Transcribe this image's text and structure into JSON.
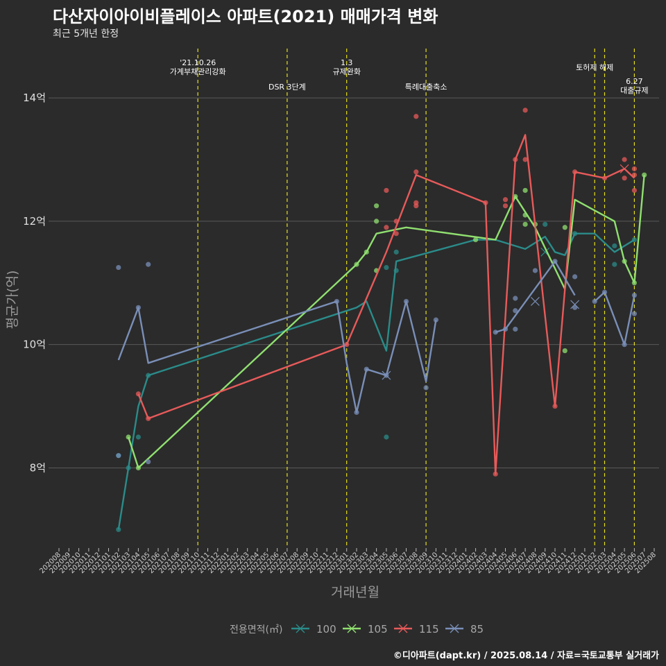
{
  "header": {
    "title": "다산자이아이비플레이스 아파트(2021) 매매가격 변화",
    "subtitle": "최근 5개년 한정"
  },
  "caption": "©디아파트(dapt.kr) / 2025.08.14 / 자료=국토교통부 실거래가",
  "chart_data": {
    "type": "line",
    "xlabel": "거래년월",
    "ylabel": "평균가(억)",
    "ylim": [
      6.7,
      14.8
    ],
    "yticks": [
      {
        "value": 8,
        "label": "8억"
      },
      {
        "value": 10,
        "label": "10억"
      },
      {
        "value": 12,
        "label": "12억"
      },
      {
        "value": 14,
        "label": "14억"
      }
    ],
    "x_categories": [
      "202008",
      "202009",
      "202010",
      "202011",
      "202012",
      "202101",
      "202102",
      "202103",
      "202104",
      "202105",
      "202106",
      "202107",
      "202108",
      "202109",
      "202110",
      "202111",
      "202112",
      "202201",
      "202202",
      "202203",
      "202204",
      "202205",
      "202206",
      "202207",
      "202208",
      "202209",
      "202210",
      "202211",
      "202212",
      "202301",
      "202302",
      "202303",
      "202304",
      "202305",
      "202306",
      "202307",
      "202308",
      "202309",
      "202310",
      "202311",
      "202312",
      "202401",
      "202402",
      "202403",
      "202404",
      "202405",
      "202406",
      "202407",
      "202408",
      "202409",
      "202410",
      "202411",
      "202412",
      "202501",
      "202502",
      "202503",
      "202504",
      "202505",
      "202506",
      "202507",
      "202508"
    ],
    "events": [
      {
        "x": "202110",
        "lines": [
          "'21.10.26",
          "가계부채관리강화"
        ],
        "row": 0
      },
      {
        "x": "202207",
        "lines": [
          "DSR 3단계"
        ],
        "row": 2
      },
      {
        "x": "202301",
        "lines": [
          "1.3",
          "규제완화"
        ],
        "row": 0
      },
      {
        "x": "202309",
        "lines": [
          "특례대출축소"
        ],
        "row": 2
      },
      {
        "x": "202502",
        "lines": [
          "토허제 해제"
        ],
        "row": 1
      },
      {
        "x": "202503",
        "lines": [],
        "row": 1
      },
      {
        "x": "202506",
        "lines": [
          "6.27",
          "대출규제"
        ],
        "row": 3
      }
    ],
    "legend": {
      "title": "전용면적(㎡)",
      "position": "bottom"
    },
    "series": [
      {
        "name": "100",
        "color": "#2a8c8a",
        "line": [
          [
            "202102",
            7.0
          ],
          [
            "202103",
            8.0
          ],
          [
            "202104",
            9.0
          ],
          [
            "202105",
            9.5
          ],
          [
            "202302",
            10.6
          ],
          [
            "202303",
            10.7
          ],
          [
            "202305",
            9.9
          ],
          [
            "202306",
            11.35
          ],
          [
            "202402",
            11.7
          ],
          [
            "202404",
            11.7
          ],
          [
            "202407",
            11.55
          ],
          [
            "202409",
            11.75
          ],
          [
            "202410",
            11.5
          ],
          [
            "202411",
            11.45
          ],
          [
            "202412",
            11.8
          ],
          [
            "202502",
            11.8
          ],
          [
            "202504",
            11.5
          ],
          [
            "202506",
            11.7
          ]
        ],
        "points": [
          [
            "202102",
            7.0
          ],
          [
            "202102",
            8.2
          ],
          [
            "202103",
            8.0
          ],
          [
            "202104",
            8.5
          ],
          [
            "202105",
            9.5
          ],
          [
            "202305",
            8.5
          ],
          [
            "202305",
            11.25
          ],
          [
            "202306",
            11.2
          ],
          [
            "202306",
            11.5
          ],
          [
            "202409",
            11.95
          ],
          [
            "202412",
            11.8
          ],
          [
            "202504",
            11.6
          ],
          [
            "202504",
            11.3
          ],
          [
            "202506",
            11.7
          ]
        ],
        "crosses": [
          [
            "202409",
            11.5
          ]
        ]
      },
      {
        "name": "105",
        "color": "#90e070",
        "line": [
          [
            "202103",
            8.5
          ],
          [
            "202104",
            8.0
          ],
          [
            "202302",
            11.3
          ],
          [
            "202303",
            11.5
          ],
          [
            "202304",
            11.8
          ],
          [
            "202307",
            11.9
          ],
          [
            "202404",
            11.7
          ],
          [
            "202406",
            12.4
          ],
          [
            "202408",
            11.9
          ],
          [
            "202411",
            10.9
          ],
          [
            "202412",
            12.35
          ],
          [
            "202504",
            12.0
          ],
          [
            "202505",
            11.35
          ],
          [
            "202506",
            11.0
          ],
          [
            "202507",
            12.75
          ]
        ],
        "points": [
          [
            "202103",
            8.5
          ],
          [
            "202104",
            8.0
          ],
          [
            "202302",
            11.3
          ],
          [
            "202303",
            11.5
          ],
          [
            "202304",
            12.25
          ],
          [
            "202304",
            12.0
          ],
          [
            "202304",
            11.2
          ],
          [
            "202402",
            11.7
          ],
          [
            "202406",
            12.4
          ],
          [
            "202407",
            12.5
          ],
          [
            "202407",
            12.1
          ],
          [
            "202407",
            11.95
          ],
          [
            "202408",
            11.95
          ],
          [
            "202411",
            11.9
          ],
          [
            "202411",
            9.9
          ],
          [
            "202505",
            11.35
          ],
          [
            "202506",
            11.0
          ],
          [
            "202507",
            12.75
          ]
        ],
        "crosses": []
      },
      {
        "name": "115",
        "color": "#e85a5a",
        "line": [
          [
            "202104",
            9.2
          ],
          [
            "202105",
            8.8
          ],
          [
            "202301",
            10.0
          ],
          [
            "202305",
            11.5
          ],
          [
            "202308",
            12.75
          ],
          [
            "202403",
            12.3
          ],
          [
            "202404",
            7.9
          ],
          [
            "202406",
            13.0
          ],
          [
            "202407",
            13.4
          ],
          [
            "202410",
            9.0
          ],
          [
            "202412",
            12.8
          ],
          [
            "202503",
            12.7
          ],
          [
            "202505",
            12.85
          ],
          [
            "202506",
            12.7
          ]
        ],
        "points": [
          [
            "202104",
            9.2
          ],
          [
            "202105",
            8.8
          ],
          [
            "202301",
            10.0
          ],
          [
            "202305",
            12.5
          ],
          [
            "202305",
            11.9
          ],
          [
            "202306",
            12.0
          ],
          [
            "202306",
            11.8
          ],
          [
            "202308",
            13.7
          ],
          [
            "202308",
            12.8
          ],
          [
            "202308",
            12.3
          ],
          [
            "202308",
            12.25
          ],
          [
            "202403",
            12.3
          ],
          [
            "202404",
            7.9
          ],
          [
            "202405",
            12.35
          ],
          [
            "202405",
            12.25
          ],
          [
            "202406",
            13.0
          ],
          [
            "202407",
            13.8
          ],
          [
            "202407",
            13.0
          ],
          [
            "202410",
            9.0
          ],
          [
            "202412",
            12.8
          ],
          [
            "202503",
            12.7
          ],
          [
            "202505",
            13.0
          ],
          [
            "202505",
            12.7
          ],
          [
            "202506",
            12.85
          ],
          [
            "202506",
            12.75
          ],
          [
            "202506",
            12.5
          ]
        ],
        "crosses": [
          [
            "202505",
            12.85
          ]
        ]
      },
      {
        "name": "85",
        "color": "#7a8fb8",
        "line": [
          [
            "202102",
            9.75
          ],
          [
            "202104",
            10.6
          ],
          [
            "202105",
            9.7
          ],
          [
            "202212",
            10.7
          ],
          [
            "202301",
            9.7
          ],
          [
            "202302",
            8.9
          ],
          [
            "202303",
            9.6
          ],
          [
            "202305",
            9.5
          ],
          [
            "202307",
            10.7
          ],
          [
            "202309",
            9.4
          ],
          [
            "202310",
            10.4
          ]
        ],
        "line2": [
          [
            "202404",
            10.2
          ],
          [
            "202405",
            10.25
          ],
          [
            "202410",
            11.35
          ],
          [
            "202412",
            10.8
          ]
        ],
        "line3": [
          [
            "202502",
            10.7
          ],
          [
            "202503",
            10.85
          ],
          [
            "202505",
            10.0
          ],
          [
            "202506",
            10.8
          ]
        ],
        "points": [
          [
            "202102",
            11.25
          ],
          [
            "202102",
            8.2
          ],
          [
            "202104",
            10.6
          ],
          [
            "202105",
            11.3
          ],
          [
            "202105",
            8.1
          ],
          [
            "202212",
            10.7
          ],
          [
            "202302",
            8.9
          ],
          [
            "202303",
            9.6
          ],
          [
            "202305",
            9.5
          ],
          [
            "202307",
            10.7
          ],
          [
            "202309",
            9.3
          ],
          [
            "202310",
            10.4
          ],
          [
            "202404",
            10.2
          ],
          [
            "202405",
            10.25
          ],
          [
            "202406",
            10.75
          ],
          [
            "202406",
            10.55
          ],
          [
            "202406",
            10.25
          ],
          [
            "202408",
            11.2
          ],
          [
            "202410",
            11.35
          ],
          [
            "202412",
            11.1
          ],
          [
            "202412",
            10.6
          ],
          [
            "202502",
            10.7
          ],
          [
            "202503",
            10.85
          ],
          [
            "202505",
            10.0
          ],
          [
            "202506",
            10.8
          ],
          [
            "202506",
            10.5
          ]
        ],
        "crosses": [
          [
            "202305",
            9.5
          ],
          [
            "202408",
            10.7
          ],
          [
            "202412",
            10.65
          ]
        ]
      }
    ]
  }
}
